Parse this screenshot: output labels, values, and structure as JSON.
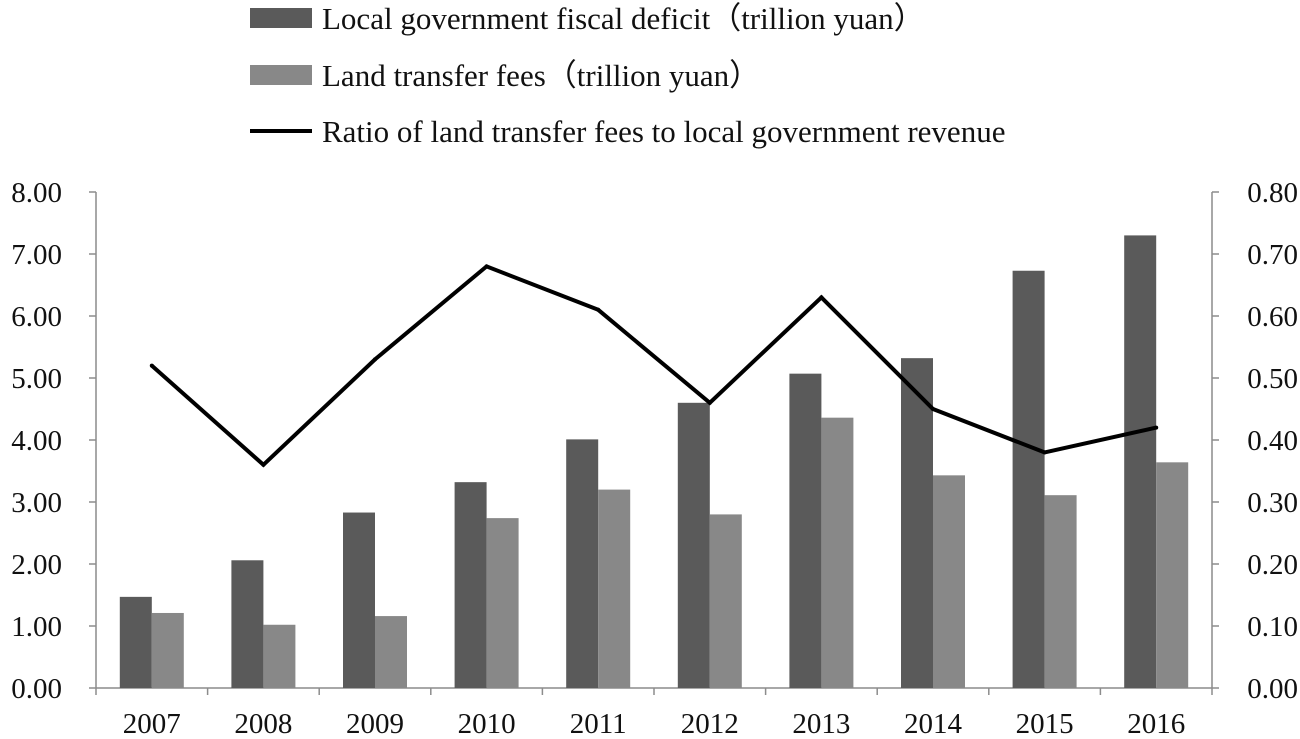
{
  "chart_data": {
    "type": "bar",
    "categories": [
      "2007",
      "2008",
      "2009",
      "2010",
      "2011",
      "2012",
      "2013",
      "2014",
      "2015",
      "2016"
    ],
    "series": [
      {
        "name": "Local government fiscal deficit（trillion yuan）",
        "kind": "bar",
        "axis": "left",
        "color": "#5a5a5a",
        "values": [
          1.47,
          2.06,
          2.83,
          3.32,
          4.01,
          4.6,
          5.07,
          5.32,
          6.73,
          7.3
        ]
      },
      {
        "name": "Land transfer fees（trillion yuan）",
        "kind": "bar",
        "axis": "left",
        "color": "#888888",
        "values": [
          1.21,
          1.02,
          1.16,
          2.74,
          3.2,
          2.8,
          4.36,
          3.43,
          3.11,
          3.64
        ]
      },
      {
        "name": "Ratio of land transfer fees to local government revenue",
        "kind": "line",
        "axis": "right",
        "color": "#000000",
        "values": [
          0.52,
          0.36,
          0.53,
          0.68,
          0.61,
          0.46,
          0.63,
          0.45,
          0.38,
          0.42
        ]
      }
    ],
    "y_left": {
      "min": 0,
      "max": 8,
      "step": 1,
      "tick_labels": [
        "0.00",
        "1.00",
        "2.00",
        "3.00",
        "4.00",
        "5.00",
        "6.00",
        "7.00",
        "8.00"
      ]
    },
    "y_right": {
      "min": 0,
      "max": 0.8,
      "step": 0.1,
      "tick_labels": [
        "0.00",
        "0.10",
        "0.20",
        "0.30",
        "0.40",
        "0.50",
        "0.60",
        "0.70",
        "0.80"
      ]
    },
    "title": "",
    "xlabel": "",
    "ylabel": "",
    "grid": false,
    "legend_position": "top"
  }
}
